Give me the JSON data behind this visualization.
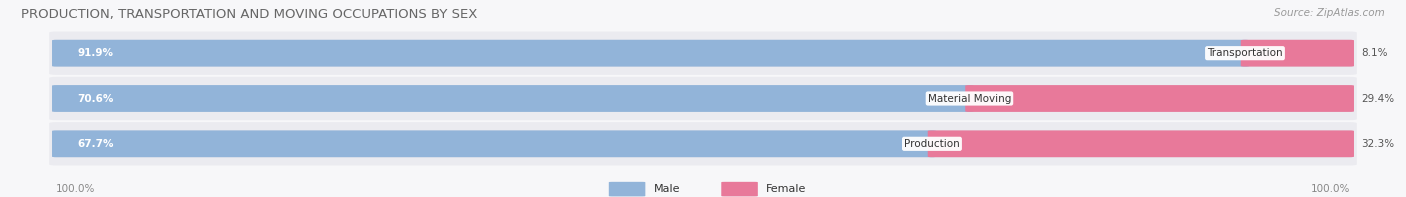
{
  "title": "PRODUCTION, TRANSPORTATION AND MOVING OCCUPATIONS BY SEX",
  "source": "Source: ZipAtlas.com",
  "categories": [
    "Transportation",
    "Material Moving",
    "Production"
  ],
  "male_values": [
    91.9,
    70.6,
    67.7
  ],
  "female_values": [
    8.1,
    29.4,
    32.3
  ],
  "male_color": "#92b4d9",
  "female_color": "#e8799a",
  "male_color_light": "#b8ccec",
  "female_color_light": "#f0a8be",
  "male_label": "Male",
  "female_label": "Female",
  "bg_color": "#f7f7f9",
  "row_bg_color": "#ebebf0",
  "bar_track_color": "#dde0ea",
  "title_color": "#666666",
  "source_color": "#999999",
  "tick_color": "#888888",
  "label_color": "#333333",
  "title_fontsize": 9.5,
  "source_fontsize": 7.5,
  "bar_label_fontsize": 7.5,
  "cat_label_fontsize": 7.5,
  "tick_fontsize": 7.5,
  "legend_fontsize": 8,
  "tick_label": "100.0%",
  "fig_width": 14.06,
  "fig_height": 1.97
}
